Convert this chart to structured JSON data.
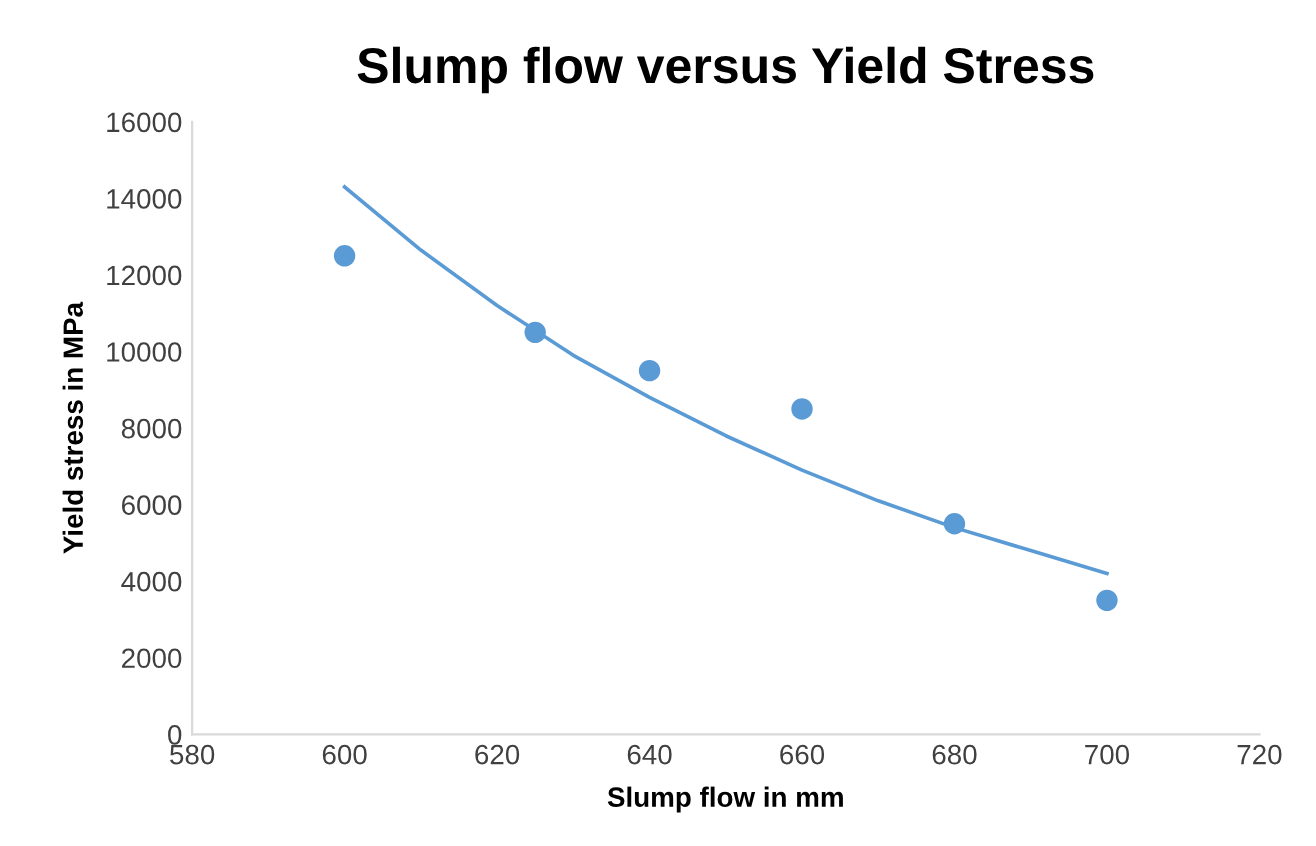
{
  "chart_data": {
    "type": "scatter",
    "title": "Slump flow versus Yield Stress",
    "xlabel": "Slump flow in mm",
    "ylabel": "Yield stress in MPa",
    "xlim": [
      580,
      720
    ],
    "xticks": [
      580,
      600,
      620,
      640,
      660,
      680,
      700,
      720
    ],
    "ylim": [
      0,
      16000
    ],
    "yticks": [
      0,
      2000,
      4000,
      6000,
      8000,
      10000,
      12000,
      14000,
      16000
    ],
    "grid": false,
    "legend": false,
    "series": [
      {
        "color": "#5b9bd5",
        "marker": "circle",
        "x": [
          600,
          625,
          640,
          660,
          680,
          700
        ],
        "values": [
          12500,
          10500,
          9500,
          8500,
          5500,
          3500
        ]
      },
      {
        "type": "line",
        "color": "#5b9bd5",
        "marker": "none",
        "x": [
          600,
          610,
          620,
          630,
          640,
          650,
          660,
          670,
          680,
          690,
          700
        ],
        "values": [
          14300,
          12650,
          11200,
          9900,
          8800,
          7800,
          6900,
          6100,
          5400,
          4800,
          4200
        ]
      }
    ]
  }
}
